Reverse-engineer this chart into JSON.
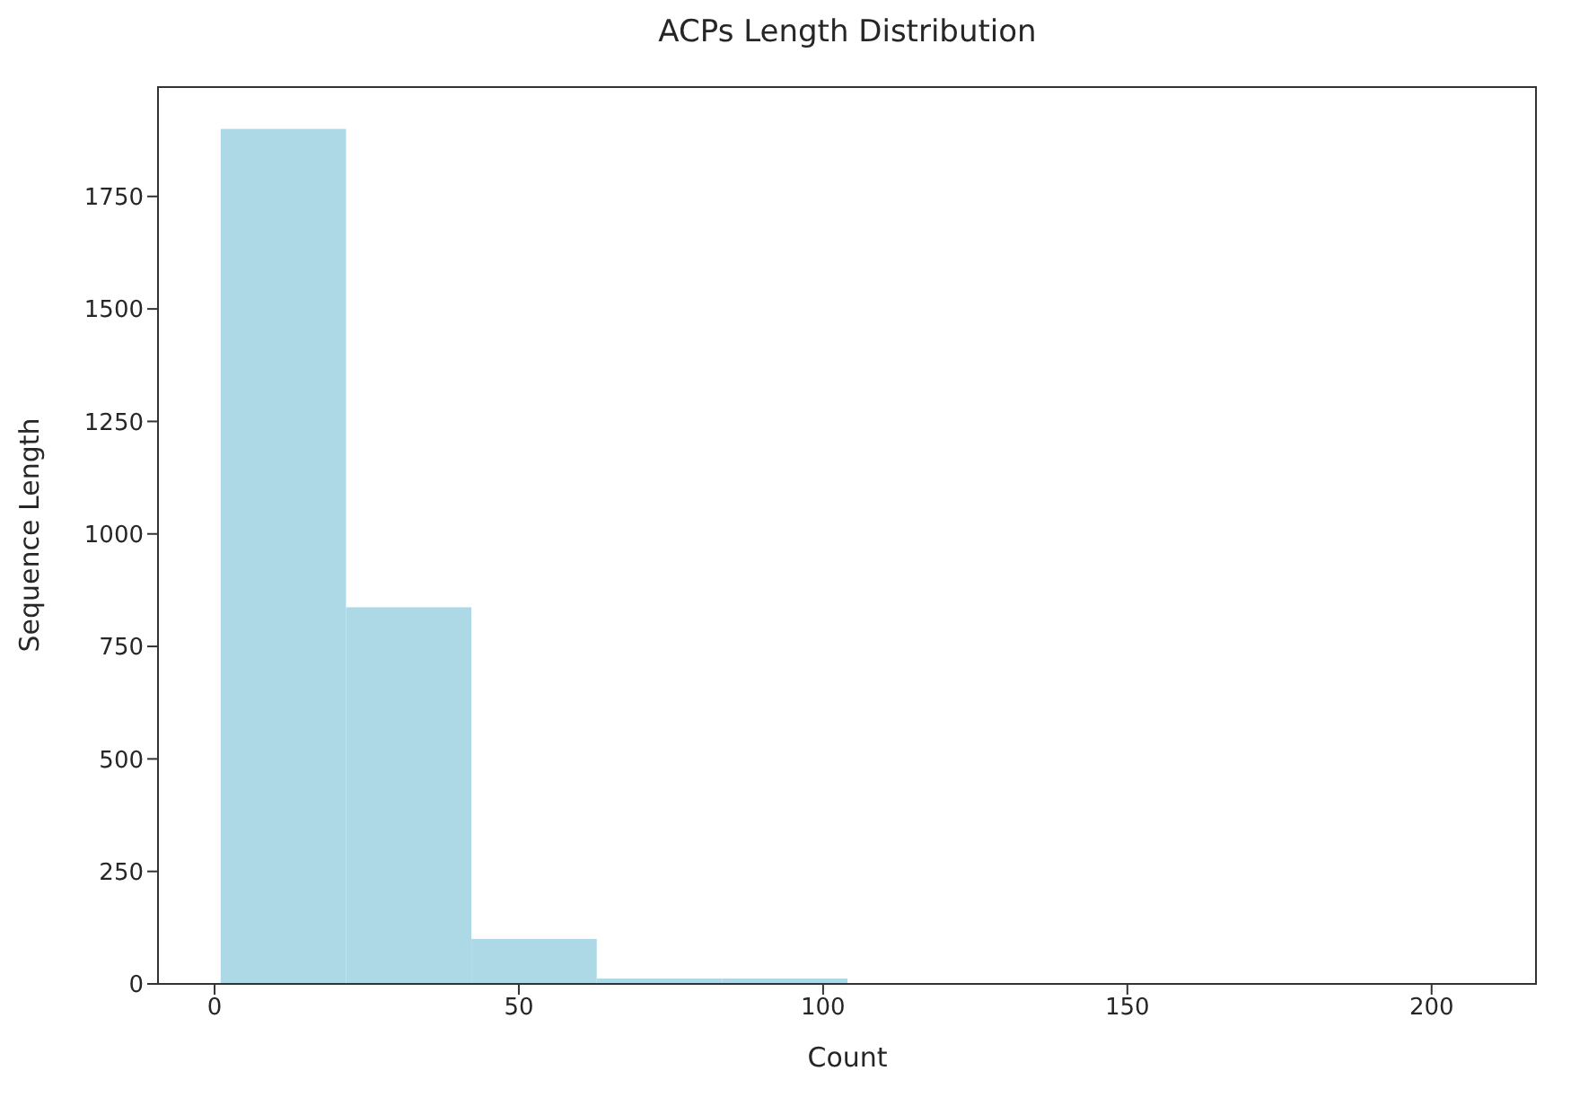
{
  "chart_data": {
    "type": "histogram",
    "title": "ACPs Length Distribution",
    "xlabel": "Count",
    "ylabel": "Sequence Length",
    "color": "#add8e6",
    "bins": [
      1,
      21.6,
      42.2,
      62.8,
      83.4,
      104,
      124.6,
      145.2,
      165.8,
      186.4,
      207
    ],
    "values": [
      1900,
      837,
      100,
      12,
      12,
      0,
      0,
      0,
      0,
      0
    ],
    "xlim": [
      -9.3,
      217.3
    ],
    "xticks": [
      0,
      50,
      100,
      150,
      200
    ],
    "ylim": [
      0,
      1995
    ],
    "yticks": [
      0,
      250,
      500,
      750,
      1000,
      1250,
      1500,
      1750
    ],
    "grid": false
  }
}
